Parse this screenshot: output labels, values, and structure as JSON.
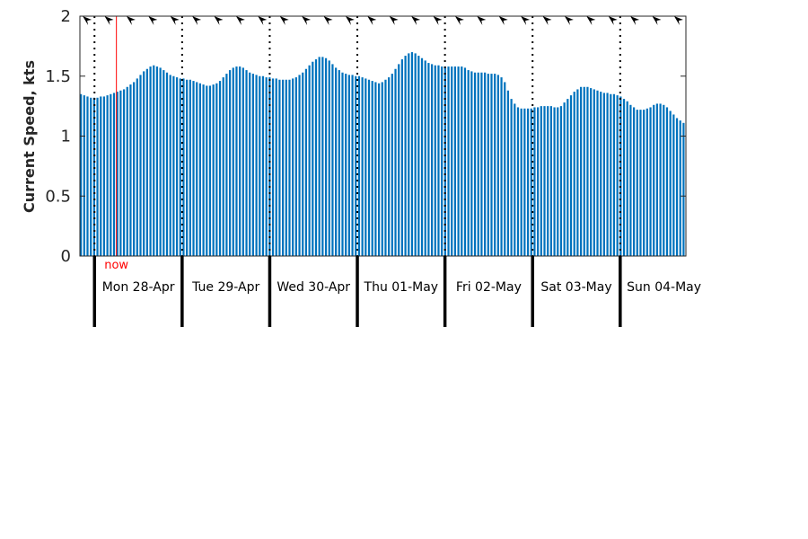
{
  "chart_data": {
    "type": "bar",
    "ylabel": "Current Speed, kts",
    "ylim": [
      0,
      2
    ],
    "yticks": [
      "0",
      "0.5",
      "1",
      "1.5",
      "2"
    ],
    "bar_color": "#0072bd",
    "now_color": "#ff0000",
    "now_label": "now",
    "now_time": "2025-04-28T06:00",
    "x_start": "2025-04-27T20:00",
    "x_end": "2025-05-04T18:00",
    "day_labels": [
      "Mon 28-Apr",
      "Tue 29-Apr",
      "Wed 30-Apr",
      "Thu 01-May",
      "Fri 02-May",
      "Sat 03-May",
      "Sun 04-May"
    ],
    "day_starts": [
      "2025-04-28",
      "2025-04-29",
      "2025-04-30",
      "2025-05-01",
      "2025-05-02",
      "2025-05-03",
      "2025-05-04"
    ],
    "grid": "vertical dotted at midnight",
    "direction_arrows": "arrowheads pointing up-left along top edge",
    "values": [
      1.35,
      1.34,
      1.33,
      1.32,
      1.32,
      1.32,
      1.33,
      1.33,
      1.34,
      1.35,
      1.36,
      1.37,
      1.38,
      1.39,
      1.41,
      1.43,
      1.45,
      1.48,
      1.51,
      1.54,
      1.56,
      1.58,
      1.59,
      1.58,
      1.57,
      1.55,
      1.53,
      1.51,
      1.5,
      1.49,
      1.48,
      1.48,
      1.47,
      1.47,
      1.46,
      1.45,
      1.44,
      1.43,
      1.42,
      1.42,
      1.43,
      1.44,
      1.46,
      1.49,
      1.52,
      1.55,
      1.57,
      1.58,
      1.58,
      1.57,
      1.55,
      1.53,
      1.52,
      1.51,
      1.5,
      1.5,
      1.49,
      1.49,
      1.48,
      1.48,
      1.47,
      1.47,
      1.47,
      1.47,
      1.48,
      1.49,
      1.51,
      1.53,
      1.56,
      1.59,
      1.62,
      1.64,
      1.66,
      1.66,
      1.65,
      1.63,
      1.6,
      1.57,
      1.55,
      1.53,
      1.52,
      1.51,
      1.51,
      1.5,
      1.5,
      1.49,
      1.48,
      1.47,
      1.46,
      1.45,
      1.44,
      1.45,
      1.47,
      1.49,
      1.52,
      1.56,
      1.6,
      1.64,
      1.67,
      1.69,
      1.7,
      1.69,
      1.67,
      1.65,
      1.63,
      1.61,
      1.6,
      1.59,
      1.59,
      1.58,
      1.58,
      1.58,
      1.58,
      1.58,
      1.58,
      1.58,
      1.57,
      1.55,
      1.54,
      1.53,
      1.53,
      1.53,
      1.53,
      1.52,
      1.52,
      1.52,
      1.51,
      1.49,
      1.45,
      1.38,
      1.31,
      1.27,
      1.24,
      1.23,
      1.23,
      1.23,
      1.23,
      1.24,
      1.24,
      1.25,
      1.25,
      1.25,
      1.25,
      1.24,
      1.24,
      1.25,
      1.28,
      1.31,
      1.34,
      1.37,
      1.39,
      1.41,
      1.41,
      1.41,
      1.4,
      1.39,
      1.38,
      1.37,
      1.36,
      1.36,
      1.35,
      1.35,
      1.34,
      1.33,
      1.31,
      1.29,
      1.26,
      1.24,
      1.22,
      1.22,
      1.22,
      1.23,
      1.24,
      1.26,
      1.27,
      1.27,
      1.26,
      1.24,
      1.21,
      1.18,
      1.15,
      1.13,
      1.11
    ]
  }
}
